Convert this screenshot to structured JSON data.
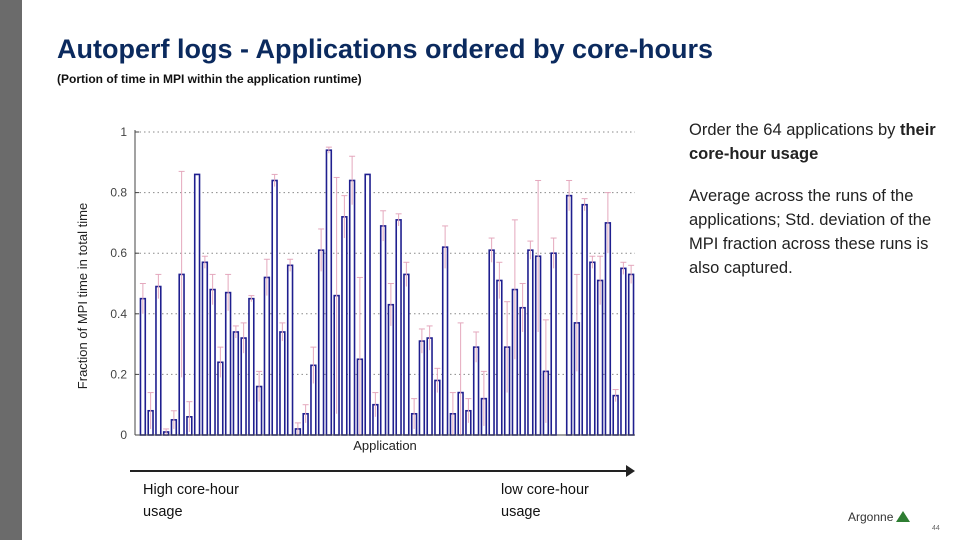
{
  "slide": {
    "title": "Autoperf logs - Applications ordered by core-hours",
    "subtitle": "(Portion of time in MPI within the application runtime)",
    "note1_plain": "Order the 64 applications by",
    "note1_bold": "their core-hour usage",
    "note2": "Average across the runs of the applications; Std. deviation of the MPI fraction across these runs is also captured.",
    "left_label_line1": "High core-hour",
    "left_label_line2": "usage",
    "right_label_line1": "low core-hour",
    "right_label_line2": "usage",
    "logo_text": "Argonne",
    "page_number": "44"
  },
  "chart_data": {
    "type": "bar",
    "title": "",
    "xlabel": "Application",
    "ylabel": "Fraction of MPI time in total time",
    "ylim": [
      0,
      1
    ],
    "yticks": [
      "0",
      "0.2",
      "0.4",
      "0.6",
      "0.8",
      "1"
    ],
    "grid": "horizontal dotted",
    "series": [
      {
        "values": [
          0.45,
          0.08,
          0.49,
          0.01,
          0.05,
          0.53,
          0.06,
          0.86,
          0.57,
          0.48,
          0.24,
          0.47,
          0.34,
          0.32,
          0.45,
          0.16,
          0.52,
          0.84,
          0.34,
          0.56,
          0.02,
          0.07,
          0.23,
          0.61,
          0.94,
          0.46,
          0.72,
          0.84,
          0.25,
          0.86,
          0.1,
          0.69,
          0.43,
          0.71,
          0.53,
          0.07,
          0.31,
          0.32,
          0.18,
          0.62,
          0.07,
          0.14,
          0.08,
          0.29,
          0.12,
          0.61,
          0.51,
          0.29,
          0.48,
          0.42,
          0.61,
          0.59,
          0.21,
          0.6,
          0.0,
          0.79,
          0.37,
          0.76,
          0.57,
          0.51,
          0.7,
          0.13,
          0.55,
          0.53
        ],
        "errors": [
          0.05,
          0.06,
          0.04,
          0.01,
          0.03,
          0.34,
          0.05,
          0.0,
          0.02,
          0.05,
          0.05,
          0.06,
          0.02,
          0.05,
          0.01,
          0.05,
          0.06,
          0.02,
          0.03,
          0.02,
          0.02,
          0.03,
          0.06,
          0.07,
          0.01,
          0.39,
          0.07,
          0.08,
          0.27,
          0.0,
          0.04,
          0.05,
          0.07,
          0.02,
          0.04,
          0.05,
          0.04,
          0.04,
          0.04,
          0.07,
          0.07,
          0.23,
          0.04,
          0.05,
          0.09,
          0.04,
          0.06,
          0.15,
          0.23,
          0.08,
          0.03,
          0.25,
          0.17,
          0.05,
          0.0,
          0.05,
          0.16,
          0.02,
          0.02,
          0.08,
          0.1,
          0.02,
          0.02,
          0.03
        ]
      }
    ]
  }
}
